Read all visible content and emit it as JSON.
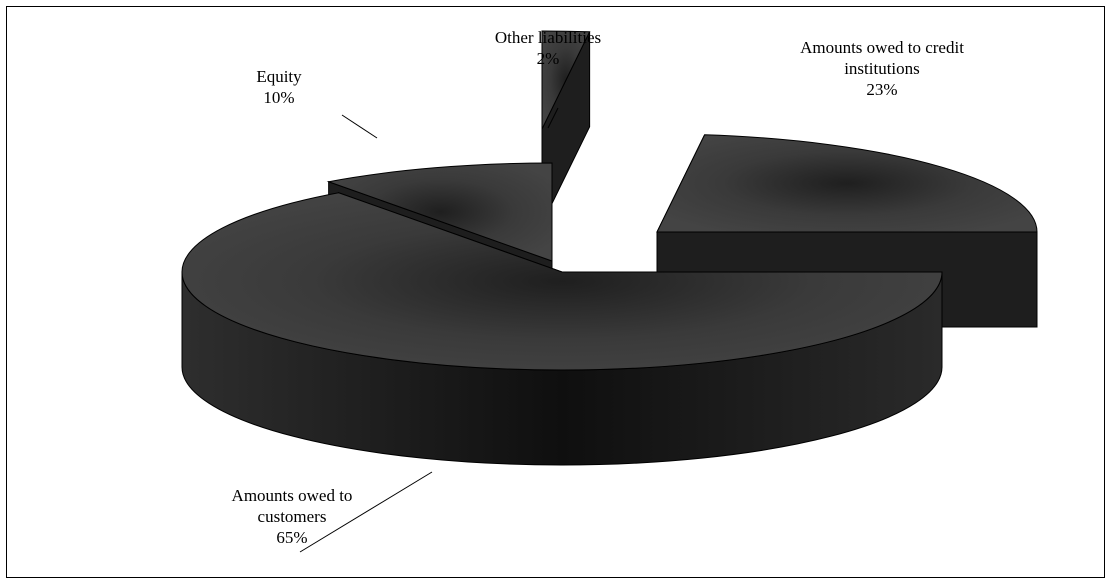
{
  "chart_data": {
    "type": "pie",
    "three_d": true,
    "exploded": true,
    "slices": [
      {
        "label_lines": [
          "Other liabilities"
        ],
        "value_label": "2%",
        "value": 2
      },
      {
        "label_lines": [
          "Amounts owed to credit",
          "institutions"
        ],
        "value_label": "23%",
        "value": 23
      },
      {
        "label_lines": [
          "Amounts owed to",
          "customers"
        ],
        "value_label": "65%",
        "value": 65
      },
      {
        "label_lines": [
          "Equity"
        ],
        "value_label": "10%",
        "value": 10
      }
    ],
    "colors": {
      "slice_top": "#3a3a3a",
      "slice_side": "#1e1e1e",
      "edge": "#000000",
      "background": "#ffffff"
    },
    "legend": "none"
  }
}
